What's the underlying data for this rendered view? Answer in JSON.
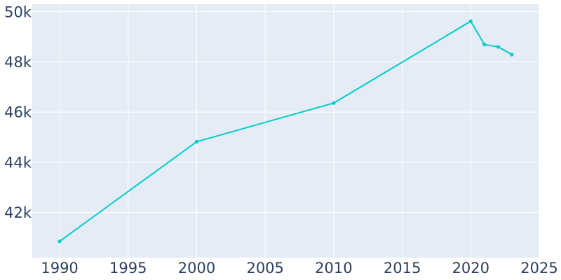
{
  "chart_data": {
    "type": "line",
    "title": "",
    "xlabel": "",
    "ylabel": "",
    "xlim": [
      1988,
      2025
    ],
    "ylim": [
      40200,
      50300
    ],
    "x_ticks": [
      1990,
      1995,
      2000,
      2005,
      2010,
      2015,
      2020,
      2025
    ],
    "x_tick_labels": [
      "1990",
      "1995",
      "2000",
      "2005",
      "2010",
      "2015",
      "2020",
      "2025"
    ],
    "y_ticks": [
      42000,
      44000,
      46000,
      48000,
      50000
    ],
    "y_tick_labels": [
      "42k",
      "44k",
      "46k",
      "48k",
      "50k"
    ],
    "grid": true,
    "series": [
      {
        "x": [
          1990,
          2000,
          2010,
          2020,
          2021,
          2022,
          2023
        ],
        "y": [
          40850,
          44820,
          46360,
          49620,
          48690,
          48600,
          48290
        ]
      }
    ],
    "colors": {
      "line": "#00cccc",
      "plot_background": "#e5ecf6",
      "grid": "#ffffff",
      "tick_text": "#2a3f5f"
    }
  }
}
